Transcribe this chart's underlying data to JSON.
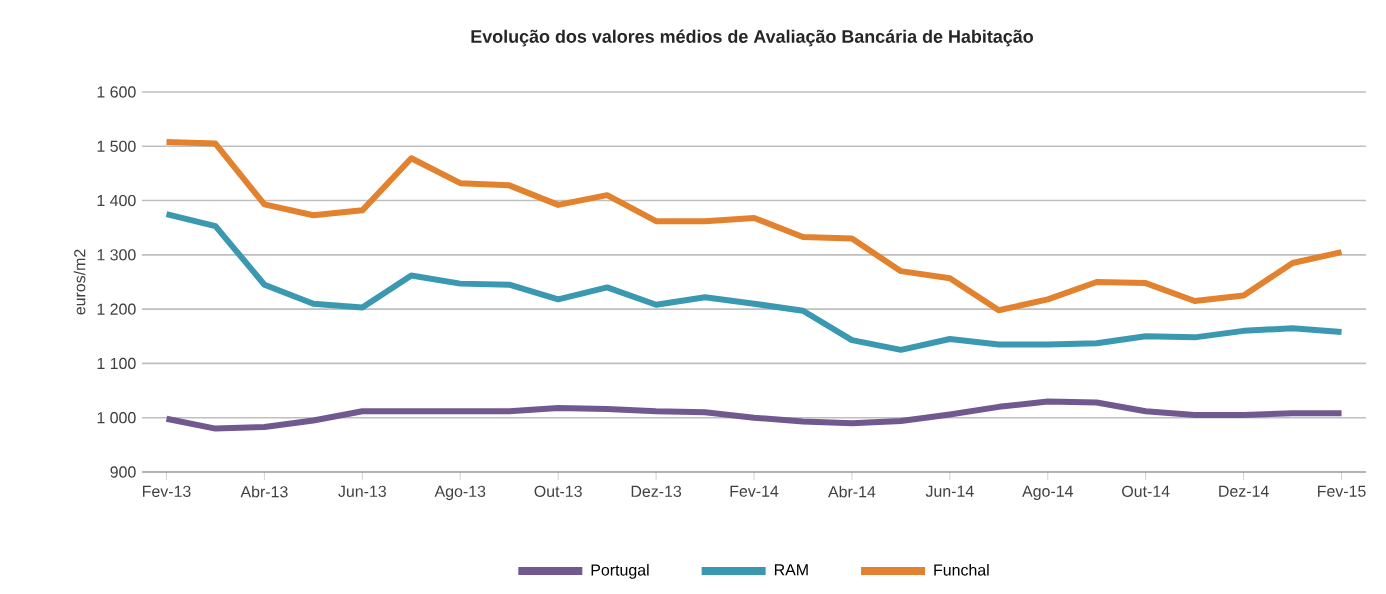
{
  "chart_data": {
    "type": "line",
    "title": "Evolução dos valores médios de Avaliação Bancária de Habitação",
    "ylabel": "euros/m2",
    "categories": [
      "Fev-13",
      null,
      "Abr-13",
      null,
      "Jun-13",
      null,
      "Ago-13",
      null,
      "Out-13",
      null,
      "Dez-13",
      null,
      "Fev-14",
      null,
      "Abr-14",
      null,
      "Jun-14",
      null,
      "Ago-14",
      null,
      "Out-14",
      null,
      "Dez-14",
      null,
      "Fev-15"
    ],
    "series": [
      {
        "name": "Portugal",
        "color": "#71588f",
        "values": [
          998,
          980,
          983,
          995,
          1012,
          1012,
          1012,
          1012,
          1018,
          1016,
          1012,
          1010,
          1000,
          993,
          990,
          994,
          1006,
          1020,
          1030,
          1028,
          1012,
          1005,
          1005,
          1008,
          1008
        ]
      },
      {
        "name": "RAM",
        "color": "#3a99b0",
        "values": [
          1375,
          1353,
          1245,
          1210,
          1203,
          1262,
          1247,
          1245,
          1218,
          1240,
          1208,
          1222,
          1210,
          1197,
          1143,
          1125,
          1145,
          1135,
          1135,
          1137,
          1150,
          1148,
          1160,
          1165,
          1158
        ]
      },
      {
        "name": "Funchal",
        "color": "#e3822e",
        "values": [
          1508,
          1505,
          1393,
          1373,
          1382,
          1478,
          1432,
          1428,
          1392,
          1410,
          1362,
          1362,
          1368,
          1333,
          1330,
          1270,
          1257,
          1198,
          1218,
          1250,
          1248,
          1215,
          1225,
          1285,
          1305
        ]
      }
    ],
    "ylim": [
      900,
      1600
    ],
    "yticks": [
      {
        "value": 900,
        "label": "900"
      },
      {
        "value": 1000,
        "label": "1 000"
      },
      {
        "value": 1100,
        "label": "1 100"
      },
      {
        "value": 1200,
        "label": "1 200"
      },
      {
        "value": 1300,
        "label": "1 300"
      },
      {
        "value": 1400,
        "label": "1 400"
      },
      {
        "value": 1500,
        "label": "1 500"
      },
      {
        "value": 1600,
        "label": "1 600"
      }
    ],
    "grid": "y",
    "legend": "bottom",
    "marker": "none",
    "line_style": "solid"
  }
}
